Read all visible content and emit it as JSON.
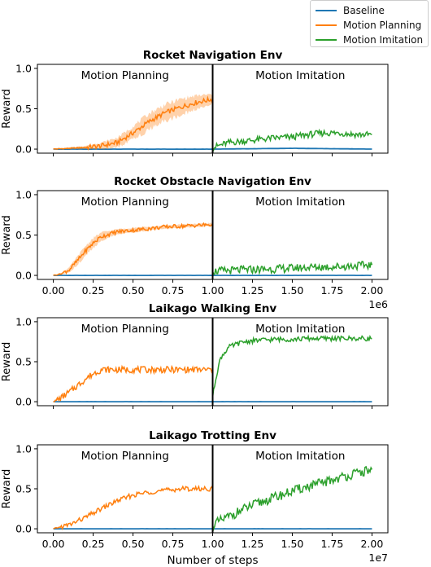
{
  "colors": {
    "baseline": "#1f77b4",
    "planning": "#ff7f0e",
    "imitation": "#2ca02c"
  },
  "legend": [
    {
      "name": "Baseline",
      "color": "#1f77b4"
    },
    {
      "name": "Motion Planning",
      "color": "#ff7f0e"
    },
    {
      "name": "Motion Imitation",
      "color": "#2ca02c"
    }
  ],
  "xlabel": "Number of steps",
  "chart_data": [
    {
      "type": "line",
      "title": "Rocket Navigation Env",
      "ylabel": "Reward",
      "phase_labels": [
        "Motion Planning",
        "Motion Imitation"
      ],
      "xlim": [
        -0.1,
        2.1
      ],
      "ylim": [
        -0.05,
        1.05
      ],
      "yticks": [
        "0.0",
        "0.5",
        "1.0"
      ],
      "xticks": [],
      "x_multiplier": "",
      "split_x": 1.0,
      "series": [
        {
          "name": "Baseline",
          "x": [
            0.0,
            0.5,
            1.0,
            1.5,
            2.0
          ],
          "values": [
            0.0,
            0.0,
            0.0,
            0.01,
            0.0
          ]
        },
        {
          "name": "Motion Planning",
          "x": [
            0.0,
            0.1,
            0.2,
            0.3,
            0.4,
            0.5,
            0.6,
            0.7,
            0.8,
            0.9,
            1.0
          ],
          "values": [
            0.0,
            0.01,
            0.02,
            0.04,
            0.08,
            0.2,
            0.34,
            0.45,
            0.52,
            0.58,
            0.62
          ],
          "band": [
            0.0,
            0.01,
            0.02,
            0.04,
            0.06,
            0.08,
            0.1,
            0.1,
            0.1,
            0.08,
            0.06
          ]
        },
        {
          "name": "Motion Imitation",
          "x": [
            1.0,
            1.1,
            1.2,
            1.3,
            1.4,
            1.5,
            1.6,
            1.7,
            1.8,
            1.9,
            2.0
          ],
          "values": [
            0.02,
            0.08,
            0.1,
            0.12,
            0.14,
            0.15,
            0.18,
            0.2,
            0.2,
            0.18,
            0.18
          ]
        }
      ]
    },
    {
      "type": "line",
      "title": "Rocket Obstacle Navigation Env",
      "ylabel": "Reward",
      "phase_labels": [
        "Motion Planning",
        "Motion Imitation"
      ],
      "xlim": [
        -0.1,
        2.1
      ],
      "ylim": [
        -0.05,
        1.05
      ],
      "yticks": [
        "0.0",
        "0.5",
        "1.0"
      ],
      "xticks": [
        "0.00",
        "0.25",
        "0.50",
        "0.75",
        "1.00",
        "1.25",
        "1.50",
        "1.75",
        "2.00"
      ],
      "x_multiplier": "1e6",
      "split_x": 1.0,
      "series": [
        {
          "name": "Baseline",
          "x": [
            0.0,
            0.5,
            1.0,
            1.5,
            2.0
          ],
          "values": [
            0.0,
            0.0,
            0.0,
            0.0,
            0.0
          ]
        },
        {
          "name": "Motion Planning",
          "x": [
            0.0,
            0.05,
            0.1,
            0.15,
            0.2,
            0.25,
            0.3,
            0.4,
            0.5,
            0.6,
            0.7,
            0.8,
            0.9,
            1.0
          ],
          "values": [
            0.0,
            0.02,
            0.07,
            0.18,
            0.3,
            0.4,
            0.48,
            0.54,
            0.56,
            0.58,
            0.6,
            0.61,
            0.62,
            0.63
          ],
          "band": [
            0.0,
            0.01,
            0.03,
            0.05,
            0.06,
            0.06,
            0.05,
            0.03,
            0.03,
            0.02,
            0.02,
            0.02,
            0.02,
            0.02
          ]
        },
        {
          "name": "Motion Imitation",
          "x": [
            1.0,
            1.2,
            1.4,
            1.6,
            1.8,
            2.0
          ],
          "values": [
            0.05,
            0.07,
            0.08,
            0.1,
            0.11,
            0.13
          ]
        }
      ]
    },
    {
      "type": "line",
      "title": "Laikago Walking Env",
      "ylabel": "Reward",
      "phase_labels": [
        "Motion Planning",
        "Motion Imitation"
      ],
      "xlim": [
        -0.1,
        2.1
      ],
      "ylim": [
        -0.05,
        1.05
      ],
      "yticks": [
        "0.0",
        "0.5",
        "1.0"
      ],
      "xticks": [],
      "x_multiplier": "",
      "split_x": 1.0,
      "series": [
        {
          "name": "Baseline",
          "x": [
            0.0,
            0.5,
            1.0,
            1.5,
            2.0
          ],
          "values": [
            0.0,
            0.0,
            0.0,
            0.0,
            0.0
          ]
        },
        {
          "name": "Motion Planning",
          "x": [
            0.0,
            0.05,
            0.1,
            0.15,
            0.2,
            0.25,
            0.3,
            0.4,
            0.5,
            0.6,
            0.7,
            0.8,
            0.9,
            1.0
          ],
          "values": [
            0.0,
            0.05,
            0.12,
            0.2,
            0.28,
            0.35,
            0.4,
            0.4,
            0.4,
            0.4,
            0.4,
            0.4,
            0.4,
            0.4
          ]
        },
        {
          "name": "Motion Imitation",
          "x": [
            1.0,
            1.02,
            1.05,
            1.1,
            1.15,
            1.2,
            1.3,
            1.4,
            1.5,
            1.6,
            1.7,
            1.8,
            1.9,
            2.0
          ],
          "values": [
            0.05,
            0.3,
            0.55,
            0.68,
            0.72,
            0.75,
            0.77,
            0.78,
            0.78,
            0.79,
            0.79,
            0.79,
            0.79,
            0.79
          ]
        }
      ]
    },
    {
      "type": "line",
      "title": "Laikago Trotting Env",
      "ylabel": "Reward",
      "phase_labels": [
        "Motion Planning",
        "Motion Imitation"
      ],
      "xlim": [
        -0.1,
        2.1
      ],
      "ylim": [
        -0.05,
        1.05
      ],
      "yticks": [
        "0.0",
        "0.5",
        "1.0"
      ],
      "xticks": [
        "0.00",
        "0.25",
        "0.50",
        "0.75",
        "1.00",
        "1.25",
        "1.50",
        "1.75",
        "2.00"
      ],
      "x_multiplier": "1e7",
      "split_x": 1.0,
      "series": [
        {
          "name": "Baseline",
          "x": [
            0.0,
            0.5,
            1.0,
            1.5,
            2.0
          ],
          "values": [
            0.0,
            0.0,
            0.0,
            0.0,
            0.0
          ]
        },
        {
          "name": "Motion Planning",
          "x": [
            0.0,
            0.1,
            0.2,
            0.3,
            0.4,
            0.5,
            0.6,
            0.7,
            0.8,
            0.9,
            1.0
          ],
          "values": [
            0.0,
            0.05,
            0.14,
            0.25,
            0.35,
            0.42,
            0.46,
            0.48,
            0.5,
            0.5,
            0.5
          ]
        },
        {
          "name": "Motion Imitation",
          "x": [
            1.0,
            1.1,
            1.2,
            1.3,
            1.4,
            1.5,
            1.6,
            1.7,
            1.8,
            1.9,
            2.0
          ],
          "values": [
            0.05,
            0.15,
            0.25,
            0.33,
            0.4,
            0.47,
            0.53,
            0.58,
            0.64,
            0.69,
            0.74
          ]
        }
      ]
    }
  ]
}
